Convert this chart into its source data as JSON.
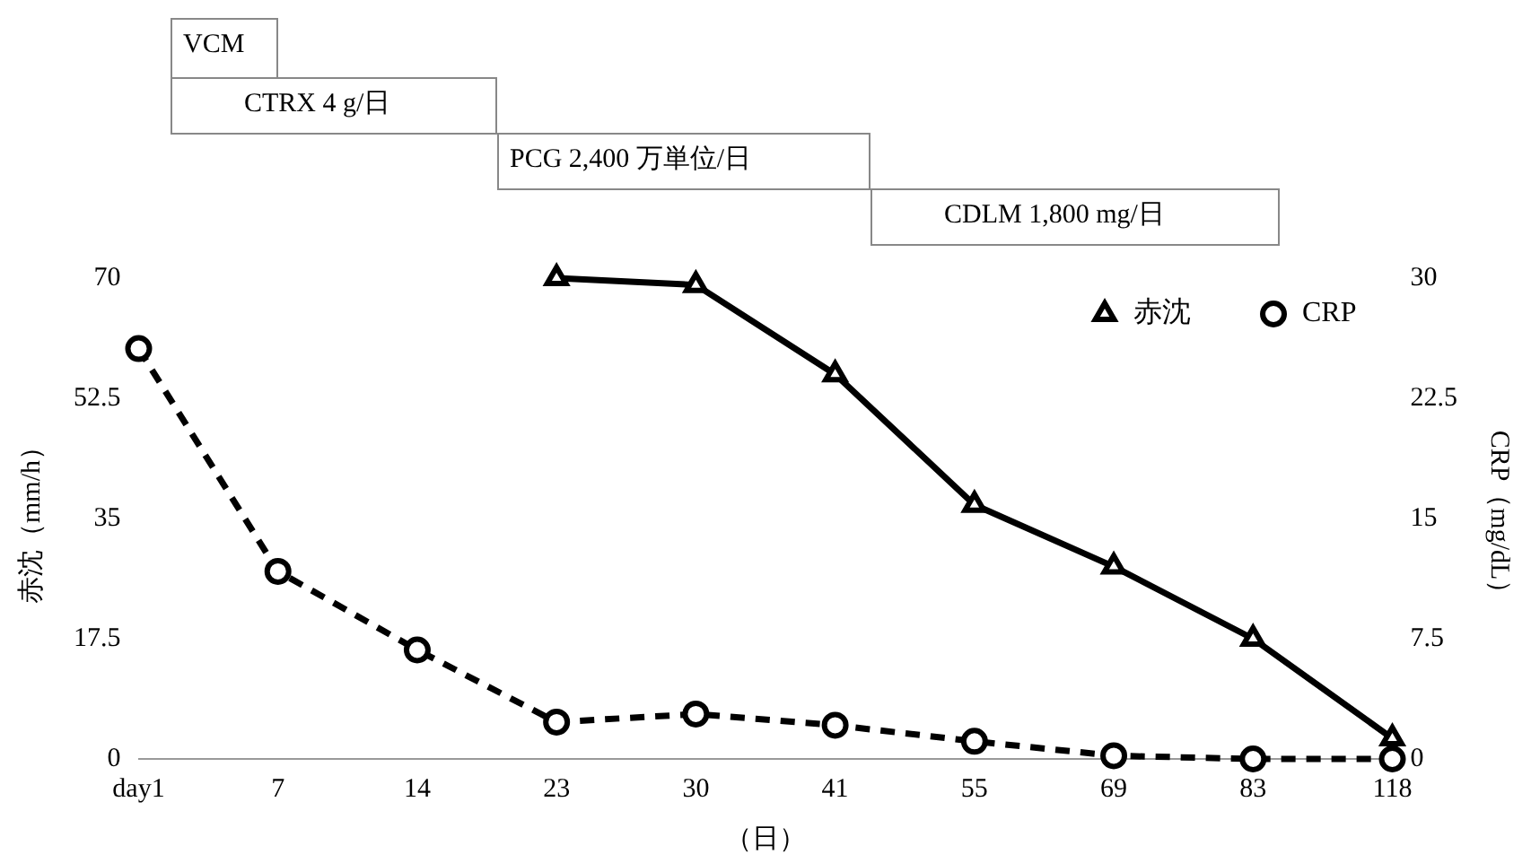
{
  "chart_data": {
    "type": "line",
    "categories": [
      "day1",
      "7",
      "14",
      "23",
      "30",
      "41",
      "55",
      "69",
      "83",
      "118"
    ],
    "series": [
      {
        "name": "赤沈",
        "color": "#000000",
        "values": [
          null,
          null,
          null,
          70,
          69,
          56,
          37,
          28,
          17.5,
          3
        ],
        "marker": "triangle",
        "line_style": "solid"
      },
      {
        "name": "CRP",
        "color": "#000000",
        "axis": "y2",
        "values": [
          25.6,
          11.7,
          6.8,
          2.3,
          2.8,
          2.1,
          1.1,
          0.2,
          0,
          0
        ],
        "marker": "circle",
        "line_style": "dashed"
      }
    ],
    "ylim": [
      0,
      70
    ],
    "yticks": [
      0,
      17.5,
      35,
      52.5,
      70
    ],
    "y2lim": [
      0,
      30
    ],
    "y2ticks": [
      0,
      7.5,
      15,
      22.5,
      30
    ],
    "ylabel": "赤沈（mm/h）",
    "y2label": "CRP（mg/dL）",
    "xlabel": "（日）",
    "annotations": [
      "VCM",
      "CTRX 4 g/日",
      "PCG 2,400 万単位/日",
      "CDLM 1,800 mg/日"
    ],
    "legend": "top right",
    "grid": false
  }
}
